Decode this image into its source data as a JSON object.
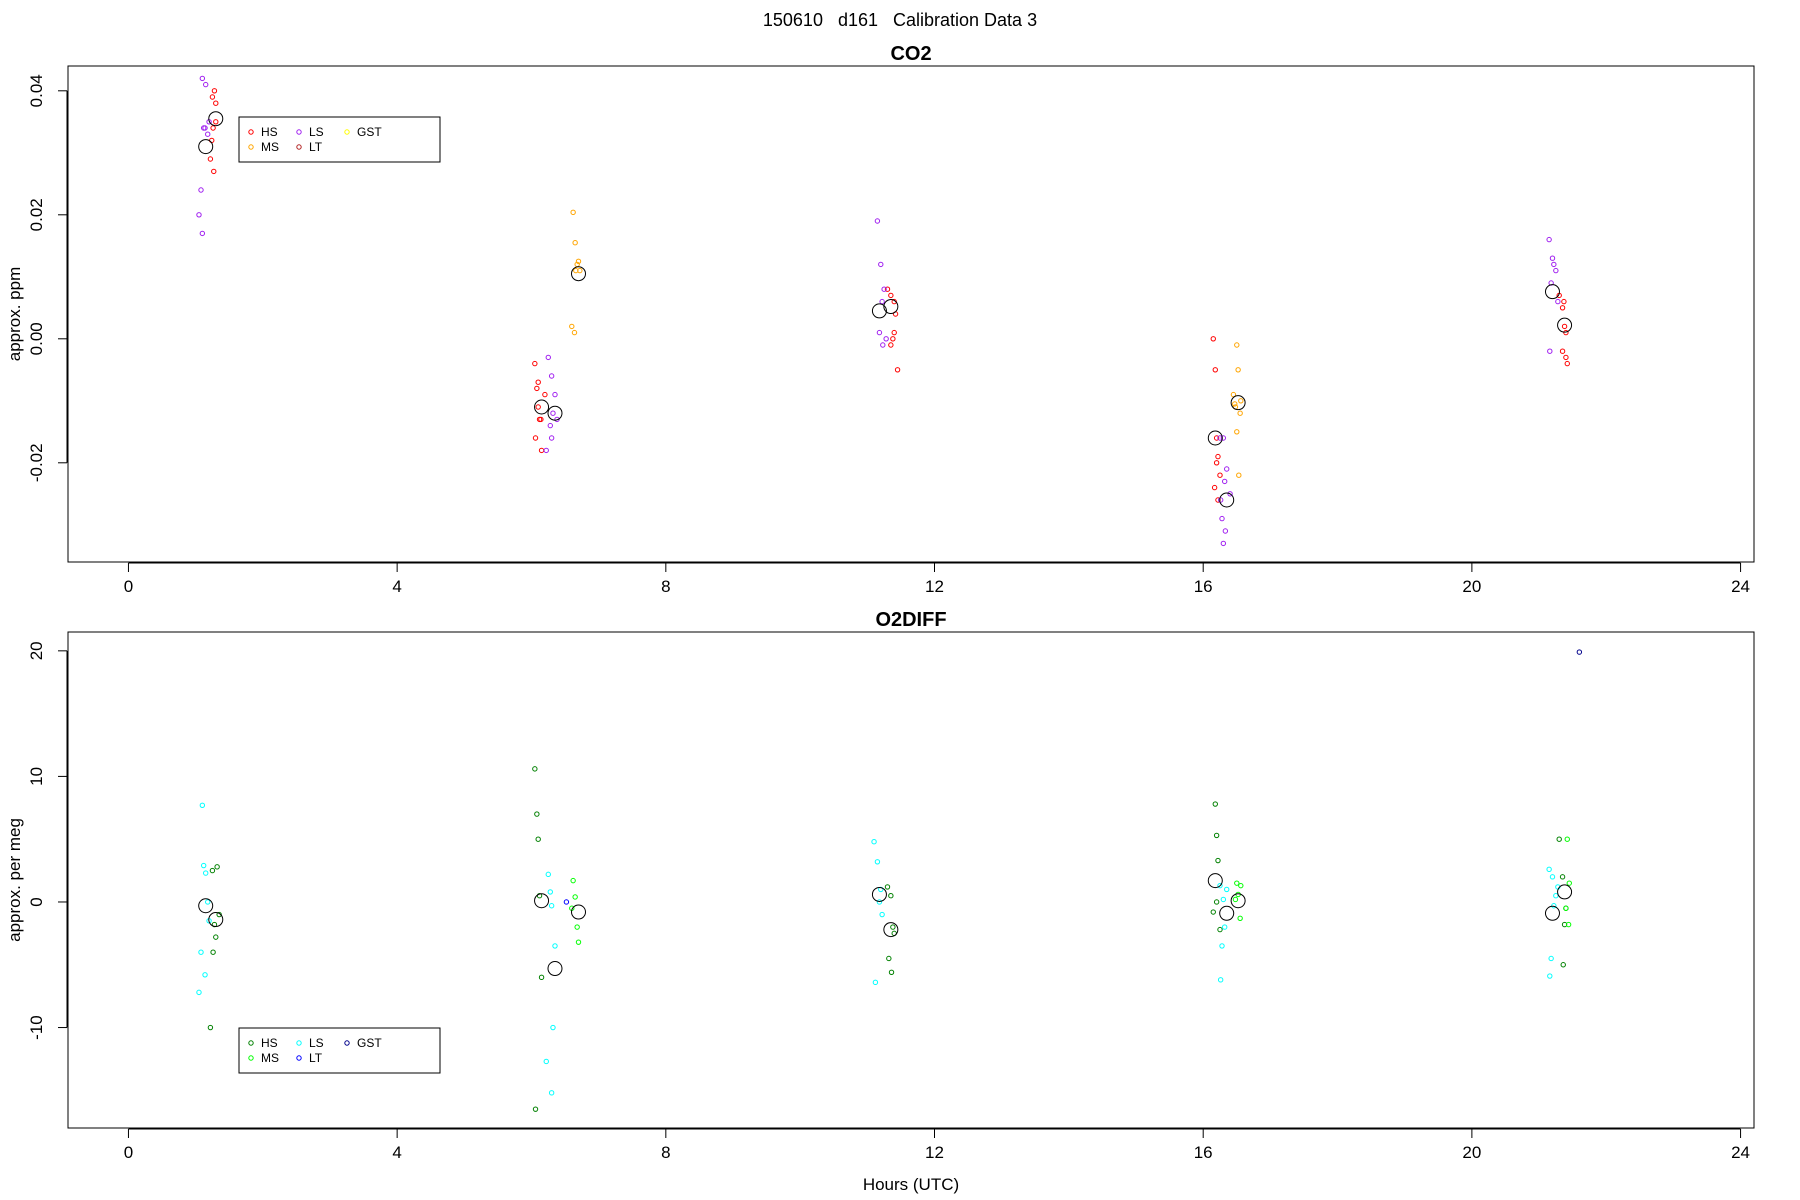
{
  "figure": {
    "title": "150610   d161   Calibration Data 3",
    "xlabel": "Hours (UTC)"
  },
  "chart_data": [
    {
      "type": "scatter",
      "title": "CO2",
      "xlabel": "",
      "ylabel": "approx. ppm",
      "xlim": [
        -0.9,
        24.2
      ],
      "ylim": [
        -0.036,
        0.044
      ],
      "xticks": [
        "0",
        "4",
        "8",
        "12",
        "16",
        "20",
        "24"
      ],
      "yticks": [
        "-0.02",
        "0.00",
        "0.02",
        "0.04"
      ],
      "legend": {
        "position": "top-left",
        "entries": [
          {
            "label": "HS",
            "color": "#ff0000"
          },
          {
            "label": "MS",
            "color": "#ffa500"
          },
          {
            "label": "LS",
            "color": "#a020f0"
          },
          {
            "label": "LT",
            "color": "#b22222"
          },
          {
            "label": "GST",
            "color": "#ffff00"
          }
        ]
      },
      "series": [
        {
          "name": "HS",
          "color": "#ff0000",
          "x": [
            1.25,
            1.28,
            1.3,
            1.22,
            1.27,
            1.24,
            1.3,
            1.26,
            6.05,
            6.08,
            6.1,
            6.12,
            6.15,
            6.06,
            6.1,
            6.14,
            6.2,
            11.3,
            11.35,
            11.4,
            11.42,
            11.38,
            11.35,
            11.4,
            11.45,
            16.15,
            16.18,
            16.2,
            16.22,
            16.2,
            16.25,
            16.17,
            16.22,
            21.3,
            21.35,
            21.38,
            21.4,
            21.35,
            21.4,
            21.37,
            21.42
          ],
          "y": [
            0.039,
            0.04,
            0.038,
            0.029,
            0.027,
            0.032,
            0.035,
            0.034,
            -0.004,
            -0.008,
            -0.007,
            -0.013,
            -0.018,
            -0.016,
            -0.011,
            -0.013,
            -0.009,
            0.008,
            0.007,
            0.006,
            0.004,
            0.0,
            -0.001,
            0.001,
            -0.005,
            0.0,
            -0.005,
            -0.016,
            -0.019,
            -0.02,
            -0.022,
            -0.024,
            -0.026,
            0.007,
            0.005,
            0.002,
            0.001,
            -0.002,
            -0.003,
            0.006,
            -0.004
          ]
        },
        {
          "name": "MS",
          "color": "#ffa500",
          "x": [
            6.62,
            6.65,
            6.68,
            6.7,
            6.72,
            6.6,
            6.64,
            6.66,
            16.5,
            16.52,
            16.48,
            16.55,
            16.45,
            16.5,
            16.53,
            16.47,
            16.56
          ],
          "y": [
            0.0204,
            0.0155,
            0.012,
            0.0125,
            0.011,
            0.002,
            0.001,
            0.011,
            -0.001,
            -0.005,
            -0.011,
            -0.012,
            -0.009,
            -0.015,
            -0.022,
            -0.0105,
            -0.01
          ]
        },
        {
          "name": "LS",
          "color": "#a020f0",
          "x": [
            1.1,
            1.15,
            1.2,
            1.12,
            1.18,
            1.08,
            1.05,
            1.1,
            1.14,
            6.25,
            6.3,
            6.35,
            6.32,
            6.28,
            6.38,
            6.22,
            6.3,
            11.15,
            11.2,
            11.25,
            11.22,
            11.18,
            11.28,
            11.23,
            16.25,
            16.3,
            16.35,
            16.32,
            16.4,
            16.28,
            16.33,
            16.3,
            16.26,
            21.15,
            21.2,
            21.25,
            21.22,
            21.18,
            21.28,
            21.16
          ],
          "y": [
            0.042,
            0.041,
            0.035,
            0.034,
            0.033,
            0.024,
            0.02,
            0.017,
            0.034,
            -0.003,
            -0.006,
            -0.009,
            -0.012,
            -0.014,
            -0.013,
            -0.018,
            -0.016,
            0.019,
            0.012,
            0.008,
            0.006,
            0.001,
            0.0,
            -0.001,
            -0.016,
            -0.016,
            -0.021,
            -0.023,
            -0.025,
            -0.029,
            -0.031,
            -0.033,
            -0.026,
            0.016,
            0.013,
            0.011,
            0.012,
            0.009,
            0.006,
            -0.002
          ]
        },
        {
          "name": "LT",
          "color": "#b22222",
          "x": [],
          "y": []
        },
        {
          "name": "GST",
          "color": "#ffff00",
          "x": [],
          "y": []
        }
      ],
      "means": {
        "x": [
          1.15,
          1.3,
          6.15,
          6.35,
          6.7,
          11.18,
          11.35,
          16.18,
          16.35,
          16.52,
          21.2,
          21.38
        ],
        "y": [
          0.031,
          0.0355,
          -0.011,
          -0.012,
          0.0105,
          0.0045,
          0.0052,
          -0.016,
          -0.026,
          -0.0103,
          0.0076,
          0.0022
        ]
      }
    },
    {
      "type": "scatter",
      "title": "O2DIFF",
      "xlabel": "Hours (UTC)",
      "ylabel": "approx. per meg",
      "xlim": [
        -0.9,
        24.2
      ],
      "ylim": [
        -18,
        21.5
      ],
      "xticks": [
        "0",
        "4",
        "8",
        "12",
        "16",
        "20",
        "24"
      ],
      "yticks": [
        "-10",
        "0",
        "10",
        "20"
      ],
      "legend": {
        "position": "bottom-left",
        "entries": [
          {
            "label": "HS",
            "color": "#008000"
          },
          {
            "label": "MS",
            "color": "#00ff00"
          },
          {
            "label": "LS",
            "color": "#00ffff"
          },
          {
            "label": "LT",
            "color": "#0000ff"
          },
          {
            "label": "GST",
            "color": "#00008b"
          }
        ]
      },
      "series": [
        {
          "name": "HS",
          "color": "#008000",
          "x": [
            1.25,
            1.32,
            1.35,
            1.28,
            1.3,
            1.26,
            1.22,
            6.05,
            6.08,
            6.1,
            6.12,
            6.15,
            6.06,
            11.3,
            11.35,
            11.38,
            11.32,
            11.36,
            11.4,
            16.18,
            16.2,
            16.22,
            16.15,
            16.25,
            16.2,
            21.3,
            21.35,
            21.4,
            21.38,
            21.36
          ],
          "y": [
            2.5,
            2.8,
            -1.0,
            -1.8,
            -2.8,
            -4.0,
            -10.0,
            10.6,
            7.0,
            5.0,
            0.5,
            -6.0,
            -16.5,
            1.2,
            0.5,
            -2.0,
            -4.5,
            -5.6,
            -2.5,
            7.8,
            5.3,
            3.3,
            -0.8,
            -2.2,
            0.0,
            5.0,
            2.0,
            -0.5,
            -1.8,
            -5.0
          ]
        },
        {
          "name": "MS",
          "color": "#00ff00",
          "x": [
            6.62,
            6.65,
            6.68,
            6.7,
            6.6,
            16.5,
            16.52,
            16.55,
            16.48,
            16.56,
            21.42,
            21.45,
            21.4,
            21.44
          ],
          "y": [
            1.7,
            0.4,
            -2.0,
            -3.2,
            -0.5,
            1.5,
            0.6,
            -1.3,
            0.2,
            1.3,
            5.0,
            1.5,
            -0.5,
            -1.8
          ]
        },
        {
          "name": "LS",
          "color": "#00ffff",
          "x": [
            1.1,
            1.12,
            1.15,
            1.2,
            1.08,
            1.14,
            1.18,
            1.05,
            6.25,
            6.28,
            6.3,
            6.35,
            6.32,
            6.22,
            6.3,
            11.1,
            11.15,
            11.2,
            11.18,
            11.22,
            11.12,
            16.25,
            16.3,
            16.32,
            16.28,
            16.35,
            16.26,
            21.15,
            21.2,
            21.25,
            21.22,
            21.18,
            21.28,
            21.16
          ],
          "y": [
            7.7,
            2.9,
            2.3,
            -1.5,
            -4.0,
            -5.8,
            0.0,
            -7.2,
            2.2,
            0.8,
            -0.3,
            -3.5,
            -10.0,
            -12.7,
            -15.2,
            4.8,
            3.2,
            1.0,
            0.0,
            -1.0,
            -6.4,
            1.3,
            0.2,
            -2.0,
            -3.5,
            1.0,
            -6.2,
            2.6,
            2.0,
            0.5,
            -0.3,
            -4.5,
            1.2,
            -5.9
          ]
        },
        {
          "name": "LT",
          "color": "#0000ff",
          "x": [
            6.52
          ],
          "y": [
            0.0
          ]
        },
        {
          "name": "GST",
          "color": "#00008b",
          "x": [
            21.6
          ],
          "y": [
            19.9
          ]
        }
      ],
      "means": {
        "x": [
          1.15,
          1.3,
          6.15,
          6.35,
          6.7,
          11.18,
          11.35,
          16.18,
          16.35,
          16.52,
          21.2,
          21.38
        ],
        "y": [
          -0.3,
          -1.4,
          0.1,
          -5.3,
          -0.8,
          0.6,
          -2.2,
          1.7,
          -0.9,
          0.1,
          -0.9,
          0.8
        ]
      }
    }
  ]
}
